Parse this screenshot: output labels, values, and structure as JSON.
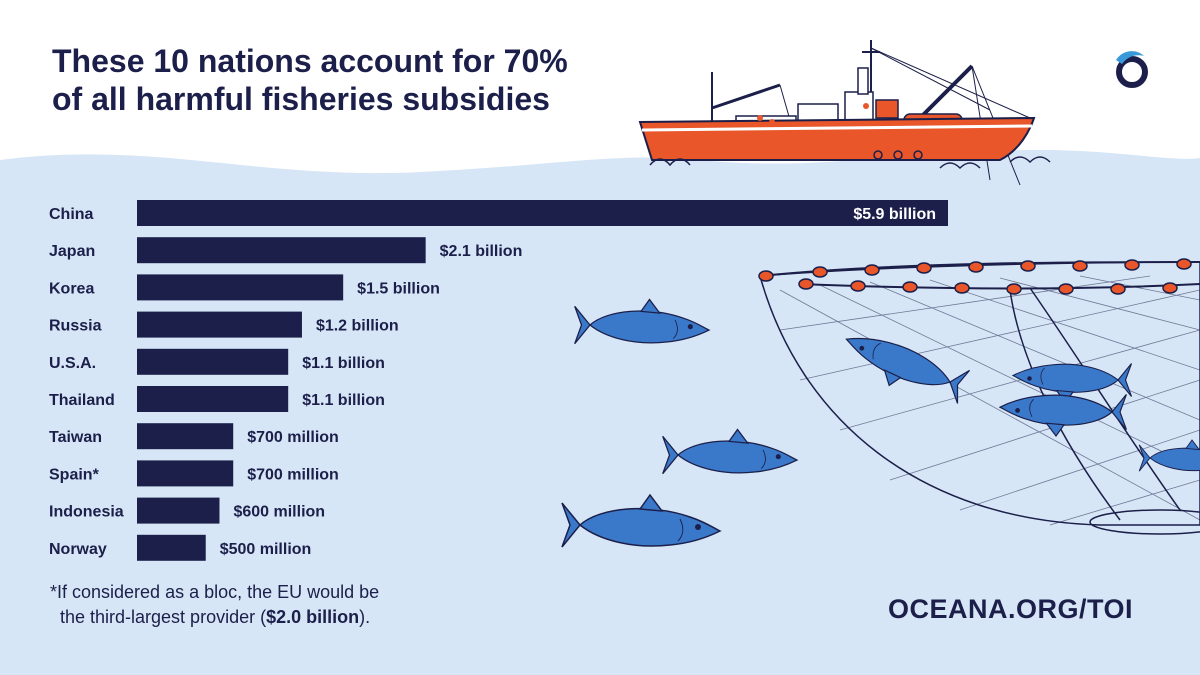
{
  "brand": {
    "logo_icon": "oceana-wave-logo-icon",
    "accent": "#1c1f4a",
    "sea": "#d6e6f6"
  },
  "title": {
    "line1": "These 10 nations account for 70%",
    "line2": "of all harmful fisheries subsidies"
  },
  "chart_data": {
    "type": "bar",
    "orientation": "horizontal",
    "categories": [
      "China",
      "Japan",
      "Korea",
      "Russia",
      "U.S.A.",
      "Thailand",
      "Taiwan",
      "Spain*",
      "Indonesia",
      "Norway"
    ],
    "values": [
      5.9,
      2.1,
      1.5,
      1.2,
      1.1,
      1.1,
      0.7,
      0.7,
      0.6,
      0.5
    ],
    "value_labels": [
      "$5.9 billion",
      "$2.1 billion",
      "$1.5 billion",
      "$1.2 billion",
      "$1.1 billion",
      "$1.1 billion",
      "$700 million",
      "$700 million",
      "$600 million",
      "$500 million"
    ],
    "unit": "USD billion",
    "title": "These 10 nations account for 70% of all harmful fisheries subsidies",
    "xlabel": "",
    "ylabel": "",
    "xlim": [
      0,
      5.9
    ],
    "grid": false,
    "bar_color": "#1c1f4a"
  },
  "footnote": {
    "line1": "*If considered as a bloc, the EU would be",
    "line2_prefix": "the third-largest provider (",
    "line2_bold": "$2.0 billion",
    "line2_suffix": ")."
  },
  "url": "OCEANA.ORG/TOI",
  "illustrations": [
    "fishing-trawler-icon",
    "tuna-fish-icon",
    "fishing-net-icon"
  ]
}
